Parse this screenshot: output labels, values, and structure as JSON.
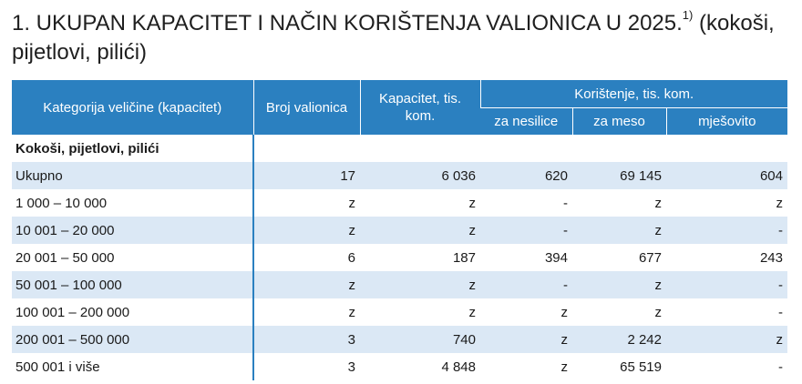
{
  "title": {
    "main": "1. UKUPAN KAPACITET I NAČIN KORIŠTENJA VALIONICA U 2025.",
    "footnote_marker": "1)",
    "suffix": " (kokoši, pijetlovi, pilići)"
  },
  "table": {
    "headers": {
      "category": "Kategorija veličine (kapacitet)",
      "count": "Broj valionica",
      "capacity": "Kapacitet, tis. kom.",
      "usage_group": "Korištenje, tis. kom.",
      "usage": [
        "za nesilice",
        "za meso",
        "mješovito"
      ]
    },
    "section_label": "Kokoši, pijetlovi, pilići",
    "rows": [
      {
        "label": "Ukupno",
        "cells": [
          "17",
          "6 036",
          "620",
          "69 145",
          "604"
        ]
      },
      {
        "label": "1 000 – 10 000",
        "cells": [
          "z",
          "z",
          "-",
          "z",
          "z"
        ]
      },
      {
        "label": "10 001 – 20 000",
        "cells": [
          "z",
          "z",
          "-",
          "z",
          "-"
        ]
      },
      {
        "label": "20 001 – 50 000",
        "cells": [
          "6",
          "187",
          "394",
          "677",
          "243"
        ]
      },
      {
        "label": "50 001 – 100 000",
        "cells": [
          "z",
          "z",
          "-",
          "z",
          "-"
        ]
      },
      {
        "label": "100 001 – 200 000",
        "cells": [
          "z",
          "z",
          "z",
          "z",
          "-"
        ]
      },
      {
        "label": "200 001 – 500 000",
        "cells": [
          "3",
          "740",
          "z",
          "2 242",
          "z"
        ]
      },
      {
        "label": "500 001 i više",
        "cells": [
          "3",
          "4 848",
          "z",
          "65 519",
          "-"
        ]
      }
    ]
  },
  "colors": {
    "header_bg": "#2b80c0",
    "row_shade": "#dbe8f5"
  }
}
